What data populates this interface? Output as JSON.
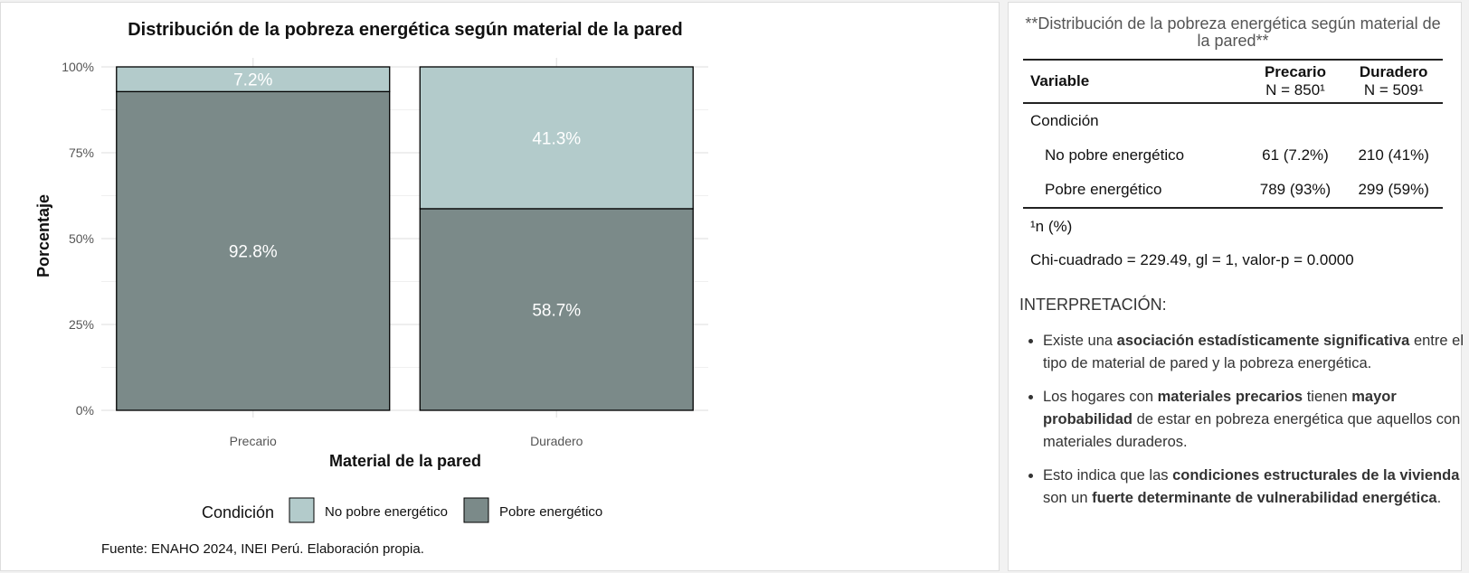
{
  "chart_data": {
    "type": "bar",
    "stacked": true,
    "title": "Distribución de la pobreza energética según material de la pared",
    "xlabel": "Material de la pared",
    "ylabel": "Porcentaje",
    "categories": [
      "Precario",
      "Duradero"
    ],
    "series": [
      {
        "name": "Pobre energético",
        "values": [
          92.8,
          58.7
        ],
        "labels": [
          "92.8%",
          "58.7%"
        ],
        "color": "#7b8a89"
      },
      {
        "name": "No pobre energético",
        "values": [
          7.2,
          41.3
        ],
        "labels": [
          "7.2%",
          "41.3%"
        ],
        "color": "#b3cbcb"
      }
    ],
    "ylim": [
      0,
      100
    ],
    "yticks": [
      0,
      25,
      50,
      75,
      100
    ],
    "ytick_labels": [
      "0%",
      "25%",
      "50%",
      "75%",
      "100%"
    ],
    "legend_title": "Condición",
    "legend_order": [
      "No pobre energético",
      "Pobre energético"
    ],
    "legend_position": "bottom",
    "grid": true,
    "caption": "Fuente: ENAHO 2024, INEI Perú. Elaboración propia."
  },
  "table": {
    "title": "**Distribución de la pobreza energética según material de la pared**",
    "header": {
      "variable": "Variable",
      "col1_name": "Precario",
      "col1_n": "N = 850¹",
      "col2_name": "Duradero",
      "col2_n": "N = 509¹"
    },
    "group_label": "Condición",
    "rows": [
      {
        "label": "No pobre energético",
        "c1": "61 (7.2%)",
        "c2": "210 (41%)"
      },
      {
        "label": "Pobre energético",
        "c1": "789 (93%)",
        "c2": "299 (59%)"
      }
    ],
    "footnote": "¹n (%)",
    "test": "Chi-cuadrado = 229.49, gl = 1, valor-p = 0.0000"
  },
  "interpretation": {
    "title": "INTERPRETACIÓN:",
    "b1_a": "Existe una ",
    "b1_b": "asociación estadísticamente significativa",
    "b1_c": " entre el tipo de material de pared y la pobreza energética.",
    "b2_a": "Los hogares con ",
    "b2_b": "materiales precarios",
    "b2_c": " tienen ",
    "b2_d": "mayor probabilidad",
    "b2_e": " de estar en pobreza energética que aquellos con materiales duraderos.",
    "b3_a": "Esto indica que las ",
    "b3_b": "condiciones estructurales de la vivienda",
    "b3_c": " son un ",
    "b3_d": "fuerte determinante de vulnerabilidad energética",
    "b3_e": "."
  }
}
